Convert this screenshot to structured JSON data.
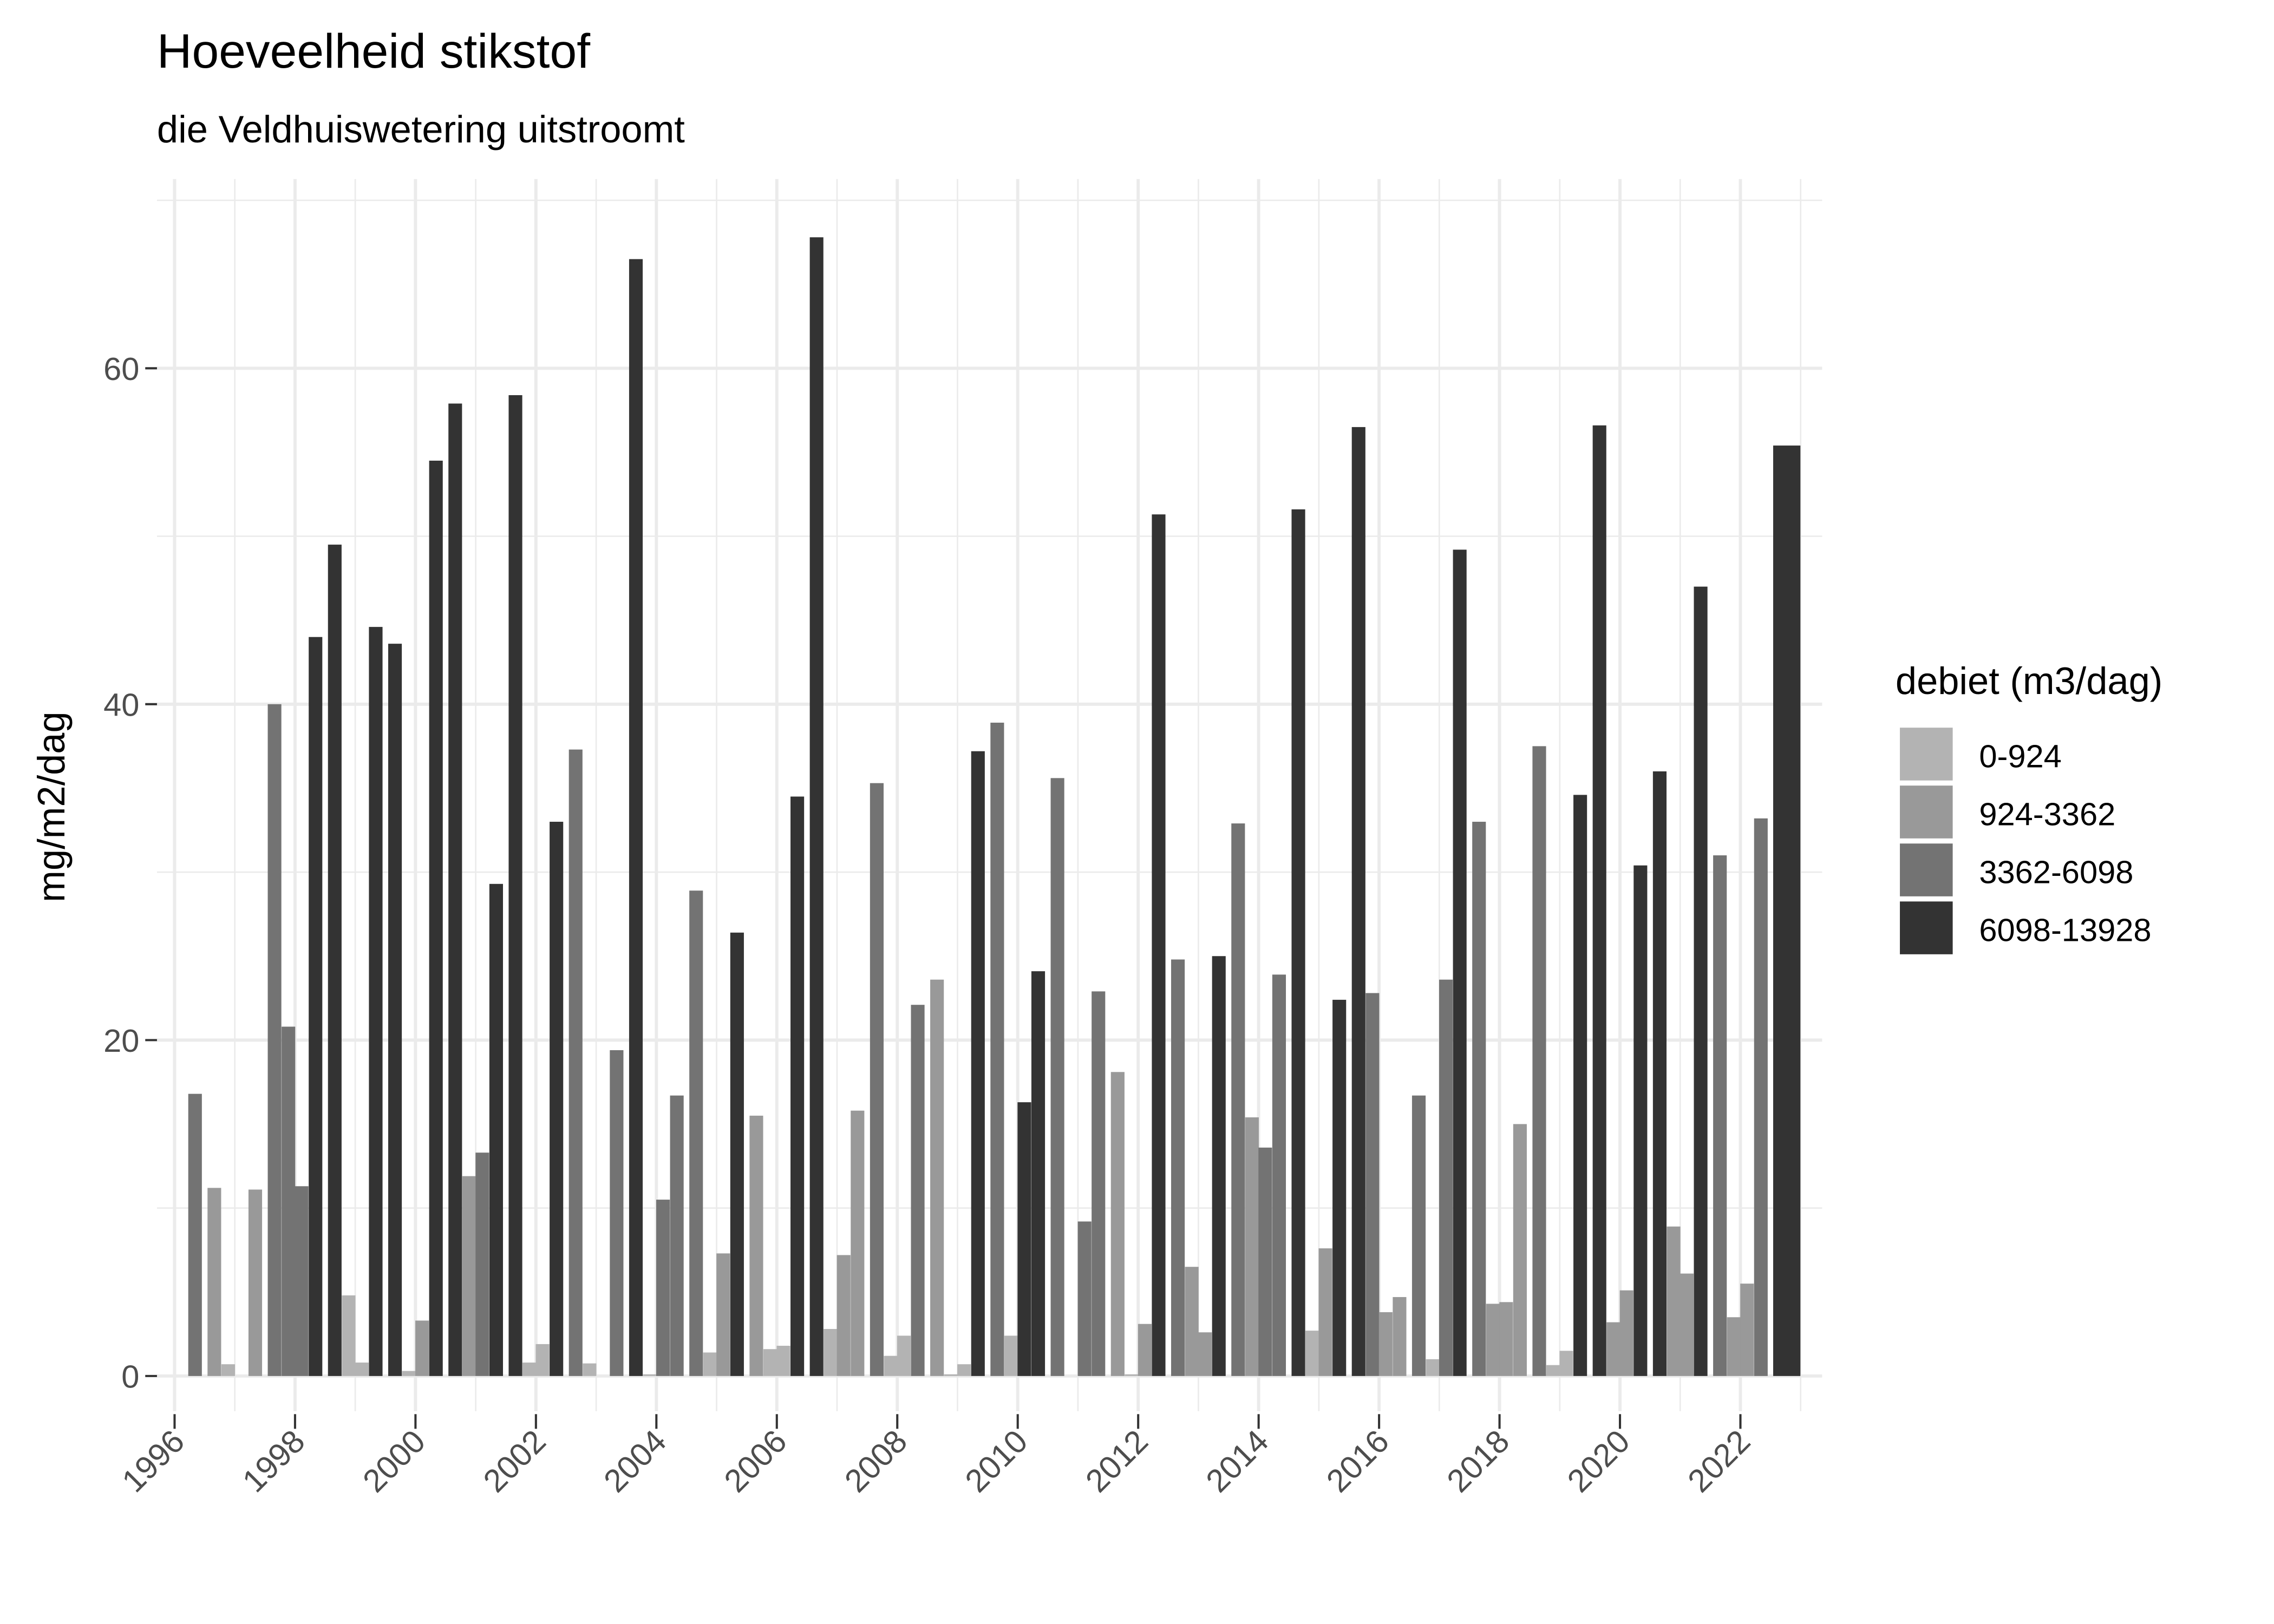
{
  "chart_data": {
    "type": "bar",
    "title": "Hoeveelheid stikstof",
    "subtitle": "die Veldhuiswetering uitstroomt",
    "xlabel": "",
    "ylabel": "mg/m2/dag",
    "xlim": [
      1995.85,
      2023.1
    ],
    "ylim": [
      -2.2,
      71.3
    ],
    "x_ticks": [
      "1996",
      "1998",
      "2000",
      "2002",
      "2004",
      "2006",
      "2008",
      "2010",
      "2012",
      "2014",
      "2016",
      "2018",
      "2020",
      "2022"
    ],
    "y_ticks": [
      "0",
      "20",
      "40",
      "60"
    ],
    "grid": true,
    "legend": {
      "title": "debiet (m3/dag)",
      "position": "right",
      "entries": [
        "0-924",
        "924-3362",
        "3362-6098",
        "6098-13928"
      ]
    },
    "colors": [
      "#b3b3b3",
      "#999999",
      "#737373",
      "#333333"
    ],
    "bar_fields": [
      "x_year",
      "category_index",
      "value"
    ],
    "bars": [
      [
        1996.34,
        2,
        16.8
      ],
      [
        1996.66,
        1,
        11.2
      ],
      [
        1996.89,
        0,
        0.7
      ],
      [
        1997.34,
        1,
        11.1
      ],
      [
        1997.66,
        2,
        40.0
      ],
      [
        1997.89,
        2,
        20.8
      ],
      [
        1998.11,
        2,
        11.3
      ],
      [
        1998.34,
        3,
        44.0
      ],
      [
        1998.66,
        3,
        49.5
      ],
      [
        1998.89,
        0,
        4.8
      ],
      [
        1999.11,
        0,
        0.8
      ],
      [
        1999.34,
        3,
        44.6
      ],
      [
        1999.66,
        3,
        43.6
      ],
      [
        1999.89,
        0,
        0.3
      ],
      [
        2000.11,
        1,
        3.3
      ],
      [
        2000.34,
        3,
        54.5
      ],
      [
        2000.66,
        3,
        57.9
      ],
      [
        2000.89,
        1,
        11.9
      ],
      [
        2001.11,
        2,
        13.3
      ],
      [
        2001.34,
        3,
        29.3
      ],
      [
        2001.66,
        3,
        58.4
      ],
      [
        2001.89,
        0,
        0.8
      ],
      [
        2002.11,
        0,
        1.9
      ],
      [
        2002.34,
        3,
        33.0
      ],
      [
        2002.66,
        2,
        37.3
      ],
      [
        2002.89,
        0,
        0.75
      ],
      [
        2003.34,
        2,
        19.4
      ],
      [
        2003.66,
        3,
        66.5
      ],
      [
        2003.89,
        0,
        0.1
      ],
      [
        2004.11,
        2,
        10.5
      ],
      [
        2004.34,
        2,
        16.7
      ],
      [
        2004.66,
        2,
        28.9
      ],
      [
        2004.89,
        0,
        1.4
      ],
      [
        2005.11,
        1,
        7.3
      ],
      [
        2005.34,
        3,
        26.4
      ],
      [
        2005.66,
        1,
        15.5
      ],
      [
        2005.89,
        0,
        1.6
      ],
      [
        2006.11,
        0,
        1.8
      ],
      [
        2006.34,
        3,
        34.5
      ],
      [
        2006.66,
        3,
        67.8
      ],
      [
        2006.89,
        0,
        2.8
      ],
      [
        2007.11,
        1,
        7.2
      ],
      [
        2007.34,
        1,
        15.8
      ],
      [
        2007.66,
        2,
        35.3
      ],
      [
        2007.89,
        0,
        1.2
      ],
      [
        2008.11,
        0,
        2.4
      ],
      [
        2008.34,
        2,
        22.1
      ],
      [
        2008.66,
        1,
        23.6
      ],
      [
        2008.89,
        0,
        0.1
      ],
      [
        2009.11,
        0,
        0.7
      ],
      [
        2009.34,
        3,
        37.2
      ],
      [
        2009.66,
        2,
        38.9
      ],
      [
        2009.89,
        0,
        2.4
      ],
      [
        2010.11,
        3,
        16.3
      ],
      [
        2010.34,
        3,
        24.1
      ],
      [
        2010.66,
        2,
        35.6
      ],
      [
        2011.11,
        2,
        9.2
      ],
      [
        2011.34,
        2,
        22.9
      ],
      [
        2011.66,
        1,
        18.1
      ],
      [
        2011.89,
        0,
        0.1
      ],
      [
        2012.11,
        1,
        3.1
      ],
      [
        2012.34,
        3,
        51.3
      ],
      [
        2012.66,
        2,
        24.8
      ],
      [
        2012.89,
        1,
        6.5
      ],
      [
        2013.11,
        1,
        2.6
      ],
      [
        2013.34,
        3,
        25.0
      ],
      [
        2013.66,
        2,
        32.9
      ],
      [
        2013.89,
        1,
        15.4
      ],
      [
        2014.11,
        2,
        13.6
      ],
      [
        2014.34,
        2,
        23.9
      ],
      [
        2014.66,
        3,
        51.6
      ],
      [
        2014.89,
        0,
        2.7
      ],
      [
        2015.11,
        1,
        7.6
      ],
      [
        2015.34,
        3,
        22.4
      ],
      [
        2015.66,
        3,
        56.5
      ],
      [
        2015.89,
        2,
        22.8
      ],
      [
        2016.11,
        1,
        3.8
      ],
      [
        2016.34,
        1,
        4.7
      ],
      [
        2016.66,
        2,
        16.7
      ],
      [
        2016.89,
        0,
        1.0
      ],
      [
        2017.11,
        2,
        23.6
      ],
      [
        2017.34,
        3,
        49.2
      ],
      [
        2017.66,
        2,
        33.0
      ],
      [
        2017.89,
        1,
        4.3
      ],
      [
        2018.11,
        1,
        4.4
      ],
      [
        2018.34,
        1,
        15.0
      ],
      [
        2018.66,
        2,
        37.5
      ],
      [
        2018.89,
        0,
        0.65
      ],
      [
        2019.11,
        0,
        1.5
      ],
      [
        2019.34,
        3,
        34.6
      ],
      [
        2019.66,
        3,
        56.6
      ],
      [
        2019.89,
        1,
        3.2
      ],
      [
        2020.11,
        1,
        5.1
      ],
      [
        2020.34,
        3,
        30.4
      ],
      [
        2020.66,
        3,
        36.0
      ],
      [
        2020.89,
        1,
        8.9
      ],
      [
        2021.11,
        1,
        6.1
      ],
      [
        2021.34,
        3,
        47.0
      ],
      [
        2021.66,
        2,
        31.0
      ],
      [
        2021.89,
        1,
        3.5
      ],
      [
        2022.11,
        1,
        5.5
      ],
      [
        2022.34,
        2,
        33.2
      ],
      [
        2022.77,
        3,
        55.4
      ]
    ]
  }
}
